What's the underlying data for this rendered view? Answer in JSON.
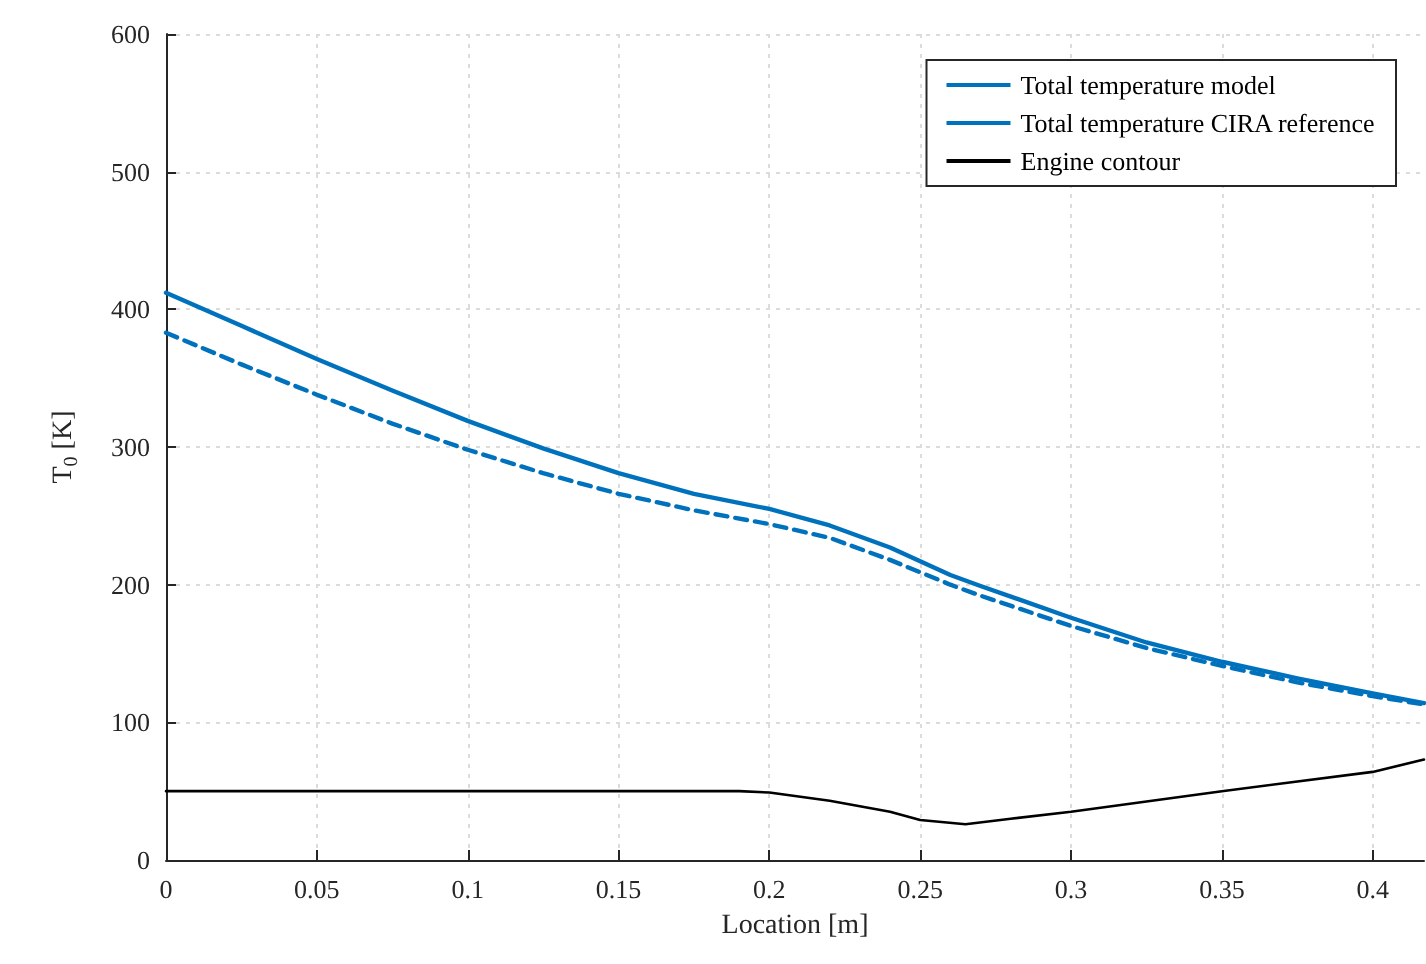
{
  "chart_data": {
    "type": "line",
    "xlabel": "Location [m]",
    "ylabel": "T$_{0}$ [K]",
    "xlim": [
      0,
      0.417
    ],
    "xticks": [
      0,
      0.05,
      0.1,
      0.15,
      0.2,
      0.25,
      0.3,
      0.35,
      0.4
    ],
    "ylim": [
      0,
      600
    ],
    "yticks": [
      0,
      100,
      200,
      300,
      400,
      500,
      600
    ],
    "grid": true,
    "legend": "top right",
    "marker": "none",
    "series": [
      {
        "name": "Total temperature model",
        "color": "#0072bd",
        "line_style": "solid",
        "x": [
          0,
          0.025,
          0.05,
          0.075,
          0.1,
          0.125,
          0.15,
          0.175,
          0.2,
          0.22,
          0.24,
          0.26,
          0.27,
          0.3,
          0.325,
          0.35,
          0.375,
          0.4,
          0.417
        ],
        "values": [
          412,
          388,
          364,
          341,
          319,
          299,
          281,
          266,
          255,
          243,
          227,
          207,
          199,
          176,
          158,
          144,
          132,
          121,
          114
        ]
      },
      {
        "name": "Total temperature CIRA reference",
        "color": "#0072bd",
        "line_style": "dashed",
        "x": [
          0,
          0.025,
          0.05,
          0.075,
          0.1,
          0.125,
          0.15,
          0.175,
          0.2,
          0.22,
          0.24,
          0.26,
          0.27,
          0.3,
          0.325,
          0.35,
          0.375,
          0.4,
          0.417
        ],
        "values": [
          383,
          360,
          338,
          317,
          298,
          281,
          266,
          254,
          244,
          234,
          218,
          200,
          192,
          170,
          154,
          141,
          129,
          119,
          113
        ]
      },
      {
        "name": "Engine contour",
        "color": "#000000",
        "line_style": "solid",
        "x": [
          0,
          0.1,
          0.19,
          0.2,
          0.22,
          0.24,
          0.25,
          0.265,
          0.28,
          0.3,
          0.35,
          0.4,
          0.417
        ],
        "values": [
          50,
          50,
          50,
          49,
          43,
          35,
          29,
          26,
          30,
          35,
          50,
          64,
          73
        ]
      }
    ]
  }
}
